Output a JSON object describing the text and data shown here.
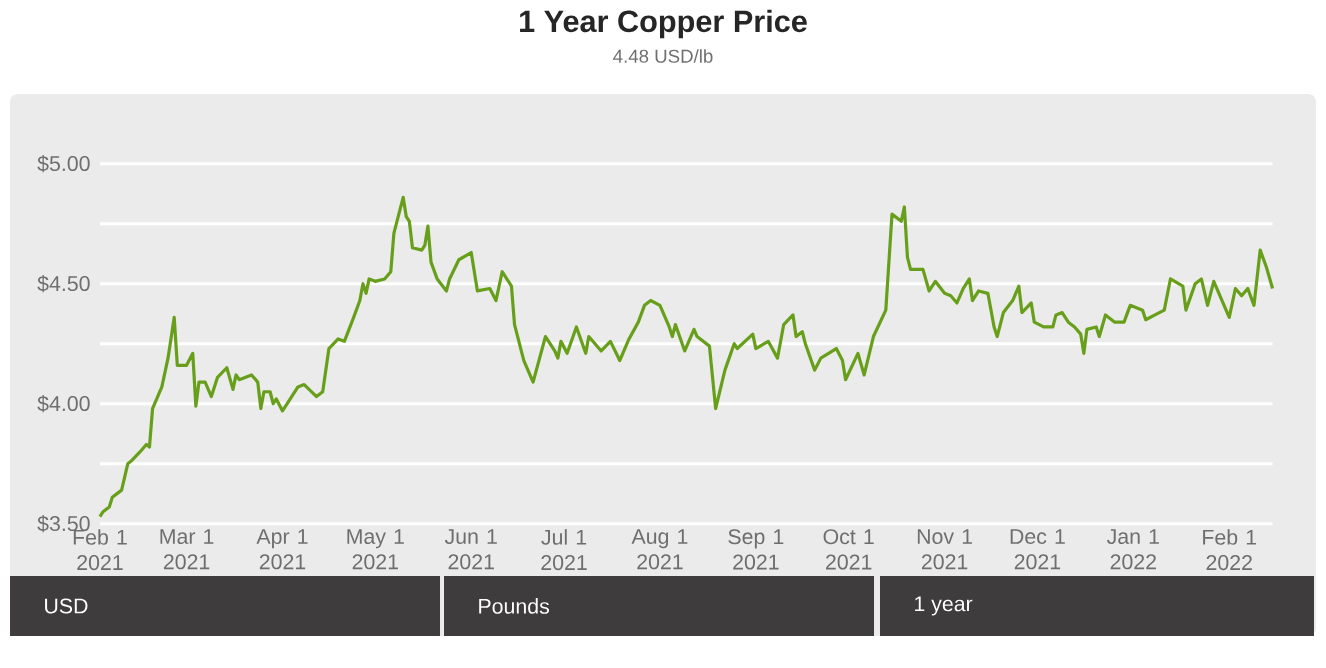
{
  "chart_data": {
    "type": "line",
    "title": "1 Year Copper Price",
    "subtitle": "4.48 USD/lb",
    "color": "#689f1a",
    "grid": "y",
    "xlim": [
      "2021-02-01",
      "2022-02-15"
    ],
    "xticks": [
      {
        "value": "2021-02-01",
        "label": "Feb 1 2021"
      },
      {
        "value": "2021-03-01",
        "label": "Mar 1 2021"
      },
      {
        "value": "2021-04-01",
        "label": "Apr 1 2021"
      },
      {
        "value": "2021-05-01",
        "label": "May 1 2021"
      },
      {
        "value": "2021-06-01",
        "label": "Jun 1 2021"
      },
      {
        "value": "2021-07-01",
        "label": "Jul 1 2021"
      },
      {
        "value": "2021-08-01",
        "label": "Aug 1 2021"
      },
      {
        "value": "2021-09-01",
        "label": "Sep 1 2021"
      },
      {
        "value": "2021-10-01",
        "label": "Oct 1 2021"
      },
      {
        "value": "2021-11-01",
        "label": "Nov 1 2021"
      },
      {
        "value": "2021-12-01",
        "label": "Dec 1 2021"
      },
      {
        "value": "2022-01-01",
        "label": "Jan 1 2022"
      },
      {
        "value": "2022-02-01",
        "label": "Feb 1 2022"
      }
    ],
    "ylim": [
      3.5,
      5.0
    ],
    "yticks": [
      {
        "value": 3.5,
        "label": "$3.50"
      },
      {
        "value": 3.75,
        "label": null
      },
      {
        "value": 4.0,
        "label": "$4.00"
      },
      {
        "value": 4.25,
        "label": null
      },
      {
        "value": 4.5,
        "label": "$4.50"
      },
      {
        "value": 4.75,
        "label": null
      },
      {
        "value": 5.0,
        "label": "$5.00"
      }
    ],
    "annotations": [
      "USD",
      "Pounds",
      "1 year"
    ],
    "x": [
      "2021-02-01",
      "2021-02-02",
      "2021-02-04",
      "2021-02-05",
      "2021-02-08",
      "2021-02-10",
      "2021-02-11",
      "2021-02-14",
      "2021-02-16",
      "2021-02-17",
      "2021-02-18",
      "2021-02-21",
      "2021-02-23",
      "2021-02-25",
      "2021-02-26",
      "2021-03-01",
      "2021-03-03",
      "2021-03-04",
      "2021-03-05",
      "2021-03-07",
      "2021-03-09",
      "2021-03-11",
      "2021-03-14",
      "2021-03-16",
      "2021-03-17",
      "2021-03-18",
      "2021-03-22",
      "2021-03-24",
      "2021-03-25",
      "2021-03-26",
      "2021-03-28",
      "2021-03-29",
      "2021-03-30",
      "2021-04-01",
      "2021-04-06",
      "2021-04-08",
      "2021-04-12",
      "2021-04-14",
      "2021-04-16",
      "2021-04-19",
      "2021-04-21",
      "2021-04-24",
      "2021-04-26",
      "2021-04-27",
      "2021-04-28",
      "2021-04-29",
      "2021-05-01",
      "2021-05-04",
      "2021-05-06",
      "2021-05-07",
      "2021-05-10",
      "2021-05-11",
      "2021-05-12",
      "2021-05-13",
      "2021-05-16",
      "2021-05-17",
      "2021-05-18",
      "2021-05-19",
      "2021-05-21",
      "2021-05-24",
      "2021-05-25",
      "2021-05-28",
      "2021-06-01",
      "2021-06-03",
      "2021-06-07",
      "2021-06-09",
      "2021-06-11",
      "2021-06-14",
      "2021-06-15",
      "2021-06-16",
      "2021-06-18",
      "2021-06-21",
      "2021-06-25",
      "2021-06-28",
      "2021-06-29",
      "2021-06-30",
      "2021-07-02",
      "2021-07-05",
      "2021-07-08",
      "2021-07-09",
      "2021-07-13",
      "2021-07-16",
      "2021-07-19",
      "2021-07-22",
      "2021-07-25",
      "2021-07-27",
      "2021-07-29",
      "2021-08-01",
      "2021-08-04",
      "2021-08-05",
      "2021-08-06",
      "2021-08-09",
      "2021-08-12",
      "2021-08-13",
      "2021-08-17",
      "2021-08-19",
      "2021-08-22",
      "2021-08-25",
      "2021-08-26",
      "2021-08-31",
      "2021-09-01",
      "2021-09-05",
      "2021-09-08",
      "2021-09-10",
      "2021-09-13",
      "2021-09-14",
      "2021-09-16",
      "2021-09-17",
      "2021-09-20",
      "2021-09-22",
      "2021-09-27",
      "2021-09-29",
      "2021-09-30",
      "2021-10-04",
      "2021-10-06",
      "2021-10-09",
      "2021-10-13",
      "2021-10-15",
      "2021-10-18",
      "2021-10-19",
      "2021-10-20",
      "2021-10-21",
      "2021-10-25",
      "2021-10-27",
      "2021-10-29",
      "2021-11-01",
      "2021-11-03",
      "2021-11-05",
      "2021-11-07",
      "2021-11-09",
      "2021-11-10",
      "2021-11-12",
      "2021-11-15",
      "2021-11-17",
      "2021-11-18",
      "2021-11-20",
      "2021-11-23",
      "2021-11-25",
      "2021-11-26",
      "2021-11-29",
      "2021-11-30",
      "2021-12-03",
      "2021-12-06",
      "2021-12-07",
      "2021-12-09",
      "2021-12-11",
      "2021-12-13",
      "2021-12-15",
      "2021-12-16",
      "2021-12-17",
      "2021-12-20",
      "2021-12-21",
      "2021-12-23",
      "2021-12-26",
      "2021-12-29",
      "2021-12-31",
      "2022-01-04",
      "2022-01-05",
      "2022-01-08",
      "2022-01-11",
      "2022-01-13",
      "2022-01-17",
      "2022-01-18",
      "2022-01-21",
      "2022-01-23",
      "2022-01-25",
      "2022-01-27",
      "2022-02-01",
      "2022-02-03",
      "2022-02-05",
      "2022-02-07",
      "2022-02-09",
      "2022-02-11",
      "2022-02-13",
      "2022-02-15"
    ],
    "values": [
      3.53,
      3.55,
      3.57,
      3.61,
      3.64,
      3.75,
      3.76,
      3.8,
      3.83,
      3.82,
      3.98,
      4.07,
      4.19,
      4.36,
      4.16,
      4.16,
      4.21,
      3.99,
      4.09,
      4.09,
      4.03,
      4.11,
      4.15,
      4.06,
      4.12,
      4.1,
      4.12,
      4.09,
      3.98,
      4.05,
      4.05,
      4.0,
      4.02,
      3.97,
      4.07,
      4.08,
      4.03,
      4.05,
      4.23,
      4.27,
      4.26,
      4.36,
      4.43,
      4.5,
      4.46,
      4.52,
      4.51,
      4.52,
      4.55,
      4.71,
      4.86,
      4.78,
      4.76,
      4.65,
      4.64,
      4.66,
      4.74,
      4.59,
      4.52,
      4.47,
      4.52,
      4.6,
      4.63,
      4.47,
      4.48,
      4.43,
      4.55,
      4.49,
      4.33,
      4.28,
      4.18,
      4.09,
      4.28,
      4.22,
      4.19,
      4.26,
      4.21,
      4.32,
      4.21,
      4.28,
      4.22,
      4.26,
      4.18,
      4.27,
      4.34,
      4.41,
      4.43,
      4.41,
      4.32,
      4.28,
      4.33,
      4.22,
      4.31,
      4.28,
      4.24,
      3.98,
      4.14,
      4.25,
      4.23,
      4.29,
      4.23,
      4.26,
      4.19,
      4.33,
      4.37,
      4.28,
      4.3,
      4.25,
      4.14,
      4.19,
      4.23,
      4.18,
      4.1,
      4.21,
      4.12,
      4.28,
      4.39,
      4.79,
      4.76,
      4.82,
      4.61,
      4.56,
      4.56,
      4.47,
      4.51,
      4.46,
      4.45,
      4.42,
      4.48,
      4.52,
      4.43,
      4.47,
      4.46,
      4.32,
      4.28,
      4.38,
      4.43,
      4.49,
      4.38,
      4.42,
      4.34,
      4.32,
      4.32,
      4.37,
      4.38,
      4.34,
      4.32,
      4.29,
      4.21,
      4.31,
      4.32,
      4.28,
      4.37,
      4.34,
      4.34,
      4.41,
      4.39,
      4.35,
      4.37,
      4.39,
      4.52,
      4.49,
      4.39,
      4.5,
      4.52,
      4.41,
      4.51,
      4.36,
      4.48,
      4.45,
      4.48,
      4.41,
      4.64,
      4.57,
      4.48
    ]
  }
}
